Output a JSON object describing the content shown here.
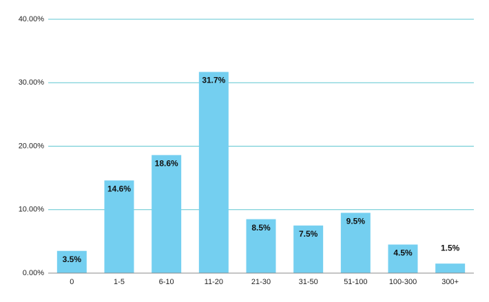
{
  "chart_data": {
    "type": "bar",
    "categories": [
      "0",
      "1-5",
      "6-10",
      "11-20",
      "21-30",
      "31-50",
      "51-100",
      "100-300",
      "300+"
    ],
    "values": [
      3.5,
      14.6,
      18.6,
      31.7,
      8.5,
      7.5,
      9.5,
      4.5,
      1.5
    ],
    "value_labels": [
      "3.5%",
      "14.6%",
      "18.6%",
      "31.7%",
      "8.5%",
      "7.5%",
      "9.5%",
      "4.5%",
      "1.5%"
    ],
    "color": "#74cff0",
    "ylim": [
      0,
      40
    ],
    "yticks": [
      {
        "value": 0,
        "label": "0.00%"
      },
      {
        "value": 10,
        "label": "10.00%"
      },
      {
        "value": 20,
        "label": "20.00%"
      },
      {
        "value": 30,
        "label": "30.00%"
      },
      {
        "value": 40,
        "label": "40.00%"
      }
    ],
    "grid": true
  }
}
